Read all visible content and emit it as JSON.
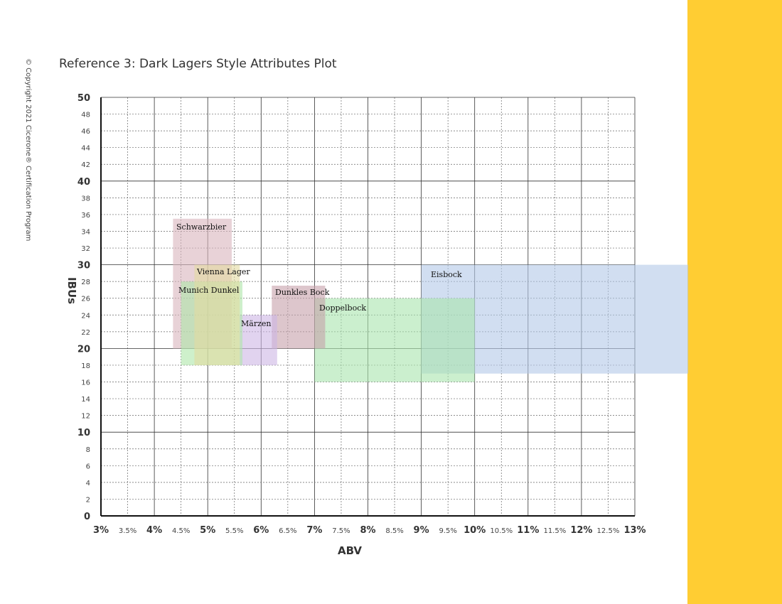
{
  "copyright": "© Copyright 2021 Cicerone® Certification Program",
  "colors": {
    "side_bar": "#FFCD33"
  },
  "chart_data": {
    "type": "range-box",
    "title": "Reference 3: Dark Lagers Style Attributes Plot",
    "xlabel": "ABV",
    "ylabel": "IBUs",
    "xlim": [
      3,
      13
    ],
    "ylim": [
      0,
      50
    ],
    "grid": true,
    "x_ticks": [
      {
        "value": 3,
        "label": "3%",
        "major": true
      },
      {
        "value": 3.5,
        "label": "3.5%",
        "major": false
      },
      {
        "value": 4,
        "label": "4%",
        "major": true
      },
      {
        "value": 4.5,
        "label": "4.5%",
        "major": false
      },
      {
        "value": 5,
        "label": "5%",
        "major": true
      },
      {
        "value": 5.5,
        "label": "5.5%",
        "major": false
      },
      {
        "value": 6,
        "label": "6%",
        "major": true
      },
      {
        "value": 6.5,
        "label": "6.5%",
        "major": false
      },
      {
        "value": 7,
        "label": "7%",
        "major": true
      },
      {
        "value": 7.5,
        "label": "7.5%",
        "major": false
      },
      {
        "value": 8,
        "label": "8%",
        "major": true
      },
      {
        "value": 8.5,
        "label": "8.5%",
        "major": false
      },
      {
        "value": 9,
        "label": "9%",
        "major": true
      },
      {
        "value": 9.5,
        "label": "9.5%",
        "major": false
      },
      {
        "value": 10,
        "label": "10%",
        "major": true
      },
      {
        "value": 10.5,
        "label": "10.5%",
        "major": false
      },
      {
        "value": 11,
        "label": "11%",
        "major": true
      },
      {
        "value": 11.5,
        "label": "11.5%",
        "major": false
      },
      {
        "value": 12,
        "label": "12%",
        "major": true
      },
      {
        "value": 12.5,
        "label": "12.5%",
        "major": false
      },
      {
        "value": 13,
        "label": "13%",
        "major": true
      }
    ],
    "y_ticks": [
      {
        "value": 0,
        "label": "0",
        "major": true
      },
      {
        "value": 2,
        "label": "2",
        "major": false
      },
      {
        "value": 4,
        "label": "4",
        "major": false
      },
      {
        "value": 6,
        "label": "6",
        "major": false
      },
      {
        "value": 8,
        "label": "8",
        "major": false
      },
      {
        "value": 10,
        "label": "10",
        "major": true
      },
      {
        "value": 12,
        "label": "12",
        "major": false
      },
      {
        "value": 14,
        "label": "14",
        "major": false
      },
      {
        "value": 16,
        "label": "16",
        "major": false
      },
      {
        "value": 18,
        "label": "18",
        "major": false
      },
      {
        "value": 20,
        "label": "20",
        "major": true
      },
      {
        "value": 22,
        "label": "22",
        "major": false
      },
      {
        "value": 24,
        "label": "24",
        "major": false
      },
      {
        "value": 26,
        "label": "26",
        "major": false
      },
      {
        "value": 28,
        "label": "28",
        "major": false
      },
      {
        "value": 30,
        "label": "30",
        "major": true
      },
      {
        "value": 32,
        "label": "32",
        "major": false
      },
      {
        "value": 34,
        "label": "34",
        "major": false
      },
      {
        "value": 36,
        "label": "36",
        "major": false
      },
      {
        "value": 38,
        "label": "38",
        "major": false
      },
      {
        "value": 40,
        "label": "40",
        "major": true
      },
      {
        "value": 42,
        "label": "42",
        "major": false
      },
      {
        "value": 44,
        "label": "44",
        "major": false
      },
      {
        "value": 46,
        "label": "46",
        "major": false
      },
      {
        "value": 48,
        "label": "48",
        "major": false
      },
      {
        "value": 50,
        "label": "50",
        "major": true
      }
    ],
    "series": [
      {
        "name": "Eisbock",
        "abv": [
          9,
          14
        ],
        "ibu": [
          17,
          30
        ],
        "color": "#b3c8e8"
      },
      {
        "name": "Doppelbock",
        "abv": [
          7,
          10
        ],
        "ibu": [
          16,
          26
        ],
        "color": "#a8e4ad"
      },
      {
        "name": "Dunkles Bock",
        "abv": [
          6.2,
          7.2
        ],
        "ibu": [
          20,
          27.5
        ],
        "color": "#c7a0aa"
      },
      {
        "name": "Märzen",
        "abv": [
          5.6,
          6.3
        ],
        "ibu": [
          18,
          24
        ],
        "color": "#cdb6e5"
      },
      {
        "name": "Schwarzbier",
        "abv": [
          4.35,
          5.45
        ],
        "ibu": [
          20,
          35.5
        ],
        "color": "#d9b4bd"
      },
      {
        "name": "Munich Dunkel",
        "abv": [
          4.5,
          5.65
        ],
        "ibu": [
          18,
          28
        ],
        "color": "#aee6a8"
      },
      {
        "name": "Vienna Lager",
        "abv": [
          4.75,
          5.6
        ],
        "ibu": [
          18,
          30
        ],
        "color": "#e3dba0"
      }
    ]
  }
}
